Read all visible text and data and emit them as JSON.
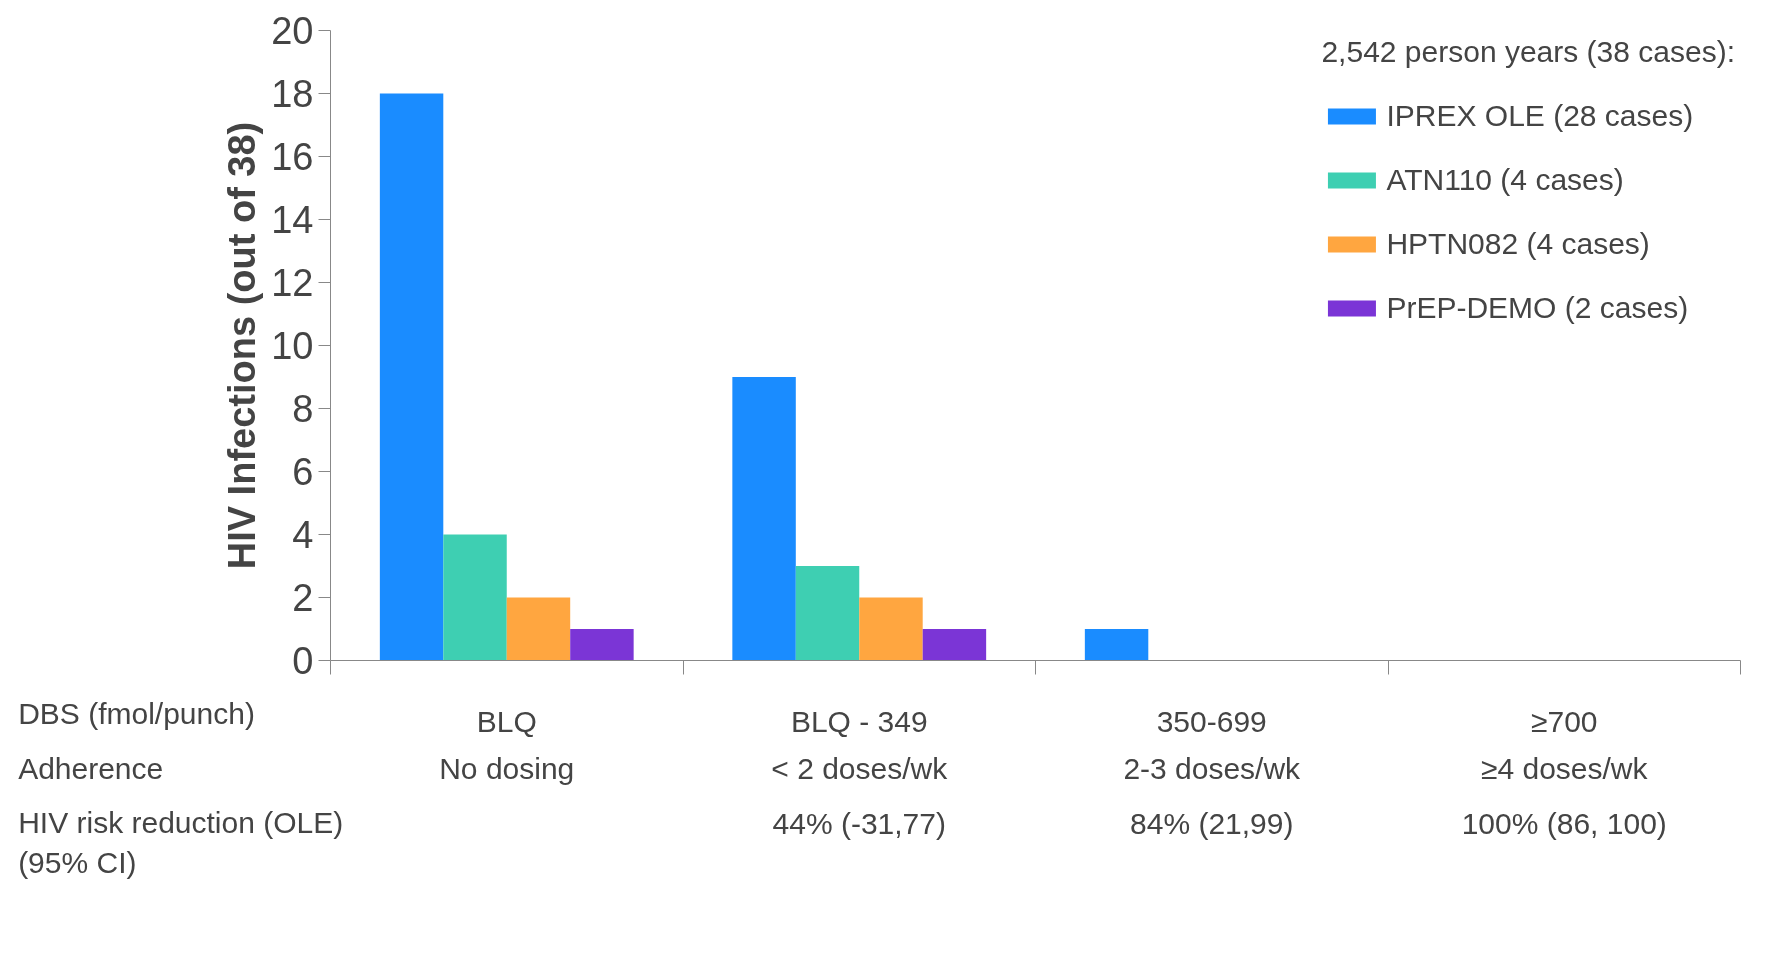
{
  "chart_data": {
    "type": "bar",
    "ylabel": "HIV Infections (out of 38)",
    "categories": [
      "BLQ",
      "BLQ - 349",
      "350-699",
      "≥700"
    ],
    "series": [
      {
        "name": "IPREX OLE (28 cases)",
        "color": "#1a8cff",
        "values": [
          18,
          9,
          1,
          0
        ]
      },
      {
        "name": "ATN110 (4 cases)",
        "color": "#3ecfb2",
        "values": [
          4,
          3,
          0,
          0
        ]
      },
      {
        "name": "HPTN082 (4 cases)",
        "color": "#ffa640",
        "values": [
          2,
          2,
          0,
          0
        ]
      },
      {
        "name": "PrEP-DEMO (2 cases)",
        "color": "#7b35d6",
        "values": [
          1,
          1,
          0,
          0
        ]
      }
    ],
    "legend_title": "2,542 person years (38 cases):",
    "legend": "top right",
    "ylim": [
      0,
      20
    ],
    "yticks": [
      0,
      2,
      4,
      6,
      8,
      10,
      12,
      14,
      16,
      18,
      20
    ],
    "grid": false,
    "annotations": [
      "DBS (fmol/punch)",
      "Adherence",
      "No dosing",
      "< 2 doses/wk",
      "2-3 doses/wk",
      "≥4 doses/wk",
      "HIV risk reduction (OLE)\n(95% CI)",
      "44% (-31,77)",
      "84% (21,99)",
      "100% (86, 100)"
    ]
  }
}
